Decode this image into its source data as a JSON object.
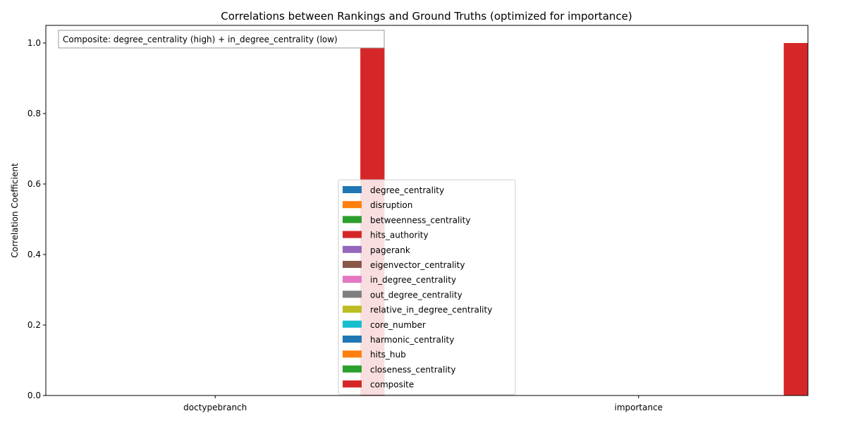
{
  "chart_data": {
    "type": "bar",
    "title": "Correlations between Rankings and Ground Truths (optimized for importance)",
    "xlabel": "",
    "ylabel": "Correlation Coefficient",
    "ylim": [
      0,
      1.05
    ],
    "yticks": [
      "0.0",
      "0.2",
      "0.4",
      "0.6",
      "0.8",
      "1.0"
    ],
    "categories": [
      "doctypebranch",
      "importance"
    ],
    "series": [
      {
        "name": "degree_centrality",
        "color": "#1f77b4",
        "values": [
          0,
          0
        ]
      },
      {
        "name": "disruption",
        "color": "#ff7f0e",
        "values": [
          0,
          0
        ]
      },
      {
        "name": "betweenness_centrality",
        "color": "#2ca02c",
        "values": [
          0,
          0
        ]
      },
      {
        "name": "hits_authority",
        "color": "#d62728",
        "values": [
          0,
          0
        ]
      },
      {
        "name": "pagerank",
        "color": "#9467bd",
        "values": [
          0,
          0
        ]
      },
      {
        "name": "eigenvector_centrality",
        "color": "#8c564b",
        "values": [
          0,
          0
        ]
      },
      {
        "name": "in_degree_centrality",
        "color": "#e377c2",
        "values": [
          0,
          0
        ]
      },
      {
        "name": "out_degree_centrality",
        "color": "#7f7f7f",
        "values": [
          0,
          0
        ]
      },
      {
        "name": "relative_in_degree_centrality",
        "color": "#bcbd22",
        "values": [
          0,
          0
        ]
      },
      {
        "name": "core_number",
        "color": "#17becf",
        "values": [
          0,
          0
        ]
      },
      {
        "name": "harmonic_centrality",
        "color": "#1f77b4",
        "values": [
          0,
          0
        ]
      },
      {
        "name": "hits_hub",
        "color": "#ff7f0e",
        "values": [
          0,
          0
        ]
      },
      {
        "name": "closeness_centrality",
        "color": "#2ca02c",
        "values": [
          0,
          0
        ]
      },
      {
        "name": "composite",
        "color": "#d62728",
        "values": [
          1.0,
          1.0
        ]
      }
    ],
    "annotation": "Composite: degree_centrality (high) + in_degree_centrality (low)",
    "legend_position": "lower center",
    "grid": false
  }
}
